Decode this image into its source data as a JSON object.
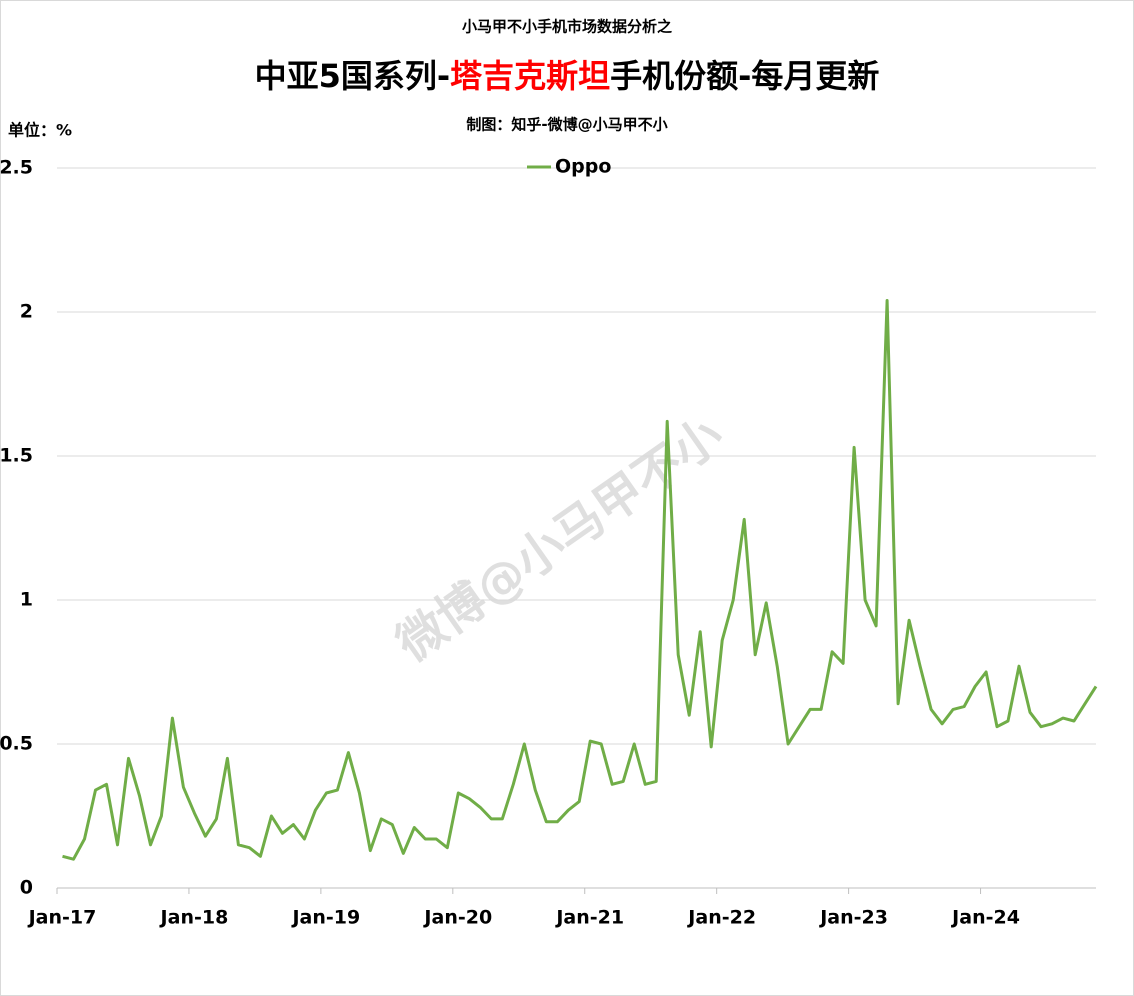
{
  "chart_data": {
    "type": "line",
    "supertitle": "小马甲不小手机市场数据分析之",
    "title_parts": [
      {
        "text": "中亚5国系列-",
        "color": "#000000"
      },
      {
        "text": "塔吉克斯坦",
        "color": "#ff0000"
      },
      {
        "text": "手机份额-每月更新",
        "color": "#000000"
      }
    ],
    "subtitle": "制图：知乎-微博@小马甲不小",
    "unit_label": "单位：%",
    "watermark": "微博@小马甲不小",
    "categories": [
      "Jan-17",
      null,
      null,
      null,
      null,
      null,
      null,
      null,
      null,
      null,
      null,
      null,
      "Jan-18",
      null,
      null,
      null,
      null,
      null,
      null,
      null,
      null,
      null,
      null,
      null,
      "Jan-19",
      null,
      null,
      null,
      null,
      null,
      null,
      null,
      null,
      null,
      null,
      null,
      "Jan-20",
      null,
      null,
      null,
      null,
      null,
      null,
      null,
      null,
      null,
      null,
      null,
      "Jan-21",
      null,
      null,
      null,
      null,
      null,
      null,
      null,
      null,
      null,
      null,
      null,
      "Jan-22",
      null,
      null,
      null,
      null,
      null,
      null,
      null,
      null,
      null,
      null,
      null,
      "Jan-23",
      null,
      null,
      null,
      null,
      null,
      null,
      null,
      null,
      null,
      null,
      null,
      "Jan-24",
      null,
      null,
      null,
      null,
      null,
      null,
      null,
      null,
      null,
      null
    ],
    "series": [
      {
        "name": "Oppo",
        "color": "#70ad47",
        "values": [
          0.11,
          0.1,
          0.17,
          0.34,
          0.36,
          0.15,
          0.45,
          0.32,
          0.15,
          0.25,
          0.59,
          0.35,
          0.26,
          0.18,
          0.24,
          0.45,
          0.15,
          0.14,
          0.11,
          0.25,
          0.19,
          0.22,
          0.17,
          0.27,
          0.33,
          0.34,
          0.47,
          0.33,
          0.13,
          0.24,
          0.22,
          0.12,
          0.21,
          0.17,
          0.17,
          0.14,
          0.33,
          0.31,
          0.28,
          0.24,
          0.24,
          0.36,
          0.5,
          0.34,
          0.23,
          0.23,
          0.27,
          0.3,
          0.51,
          0.5,
          0.36,
          0.37,
          0.5,
          0.36,
          0.37,
          1.62,
          0.81,
          0.6,
          0.89,
          0.49,
          0.86,
          1.0,
          1.28,
          0.81,
          0.99,
          0.77,
          0.5,
          0.56,
          0.62,
          0.62,
          0.82,
          0.78,
          1.53,
          1.0,
          0.91,
          2.04,
          0.64,
          0.93,
          0.77,
          0.62,
          0.57,
          0.62,
          0.63,
          0.7,
          0.75,
          0.56,
          0.58,
          0.77,
          0.61,
          0.56,
          0.57,
          0.59,
          0.58,
          0.64,
          0.7
        ]
      }
    ],
    "ylim": [
      0,
      2.5
    ],
    "yticks": [
      0,
      0.5,
      1,
      1.5,
      2,
      2.5
    ],
    "grid": true,
    "legend": "top"
  }
}
